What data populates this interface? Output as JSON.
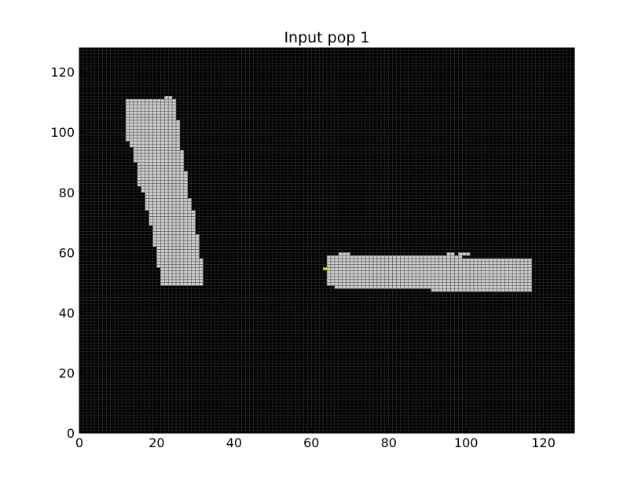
{
  "chart_data": {
    "type": "heatmap",
    "title": "Input pop 1",
    "xlabel": "",
    "ylabel": "",
    "xlim": [
      0,
      128
    ],
    "ylim": [
      0,
      128
    ],
    "xticks": [
      0,
      20,
      40,
      60,
      80,
      100,
      120
    ],
    "yticks": [
      0,
      20,
      40,
      60,
      80,
      100,
      120
    ],
    "grid": true,
    "colors": {
      "background": "#000000",
      "gridline": "#3a3a3a",
      "active_cell": "#cfcfcf",
      "cell_edge": "#5a5a5a",
      "marker": "#e6f000"
    },
    "active_rows_left_shape": [
      {
        "y": 49,
        "x0": 21,
        "x1": 32
      },
      {
        "y": 50,
        "x0": 21,
        "x1": 32
      },
      {
        "y": 51,
        "x0": 21,
        "x1": 32
      },
      {
        "y": 52,
        "x0": 21,
        "x1": 32
      },
      {
        "y": 53,
        "x0": 21,
        "x1": 32
      },
      {
        "y": 54,
        "x0": 21,
        "x1": 32
      },
      {
        "y": 55,
        "x0": 20,
        "x1": 32
      },
      {
        "y": 56,
        "x0": 20,
        "x1": 32
      },
      {
        "y": 57,
        "x0": 20,
        "x1": 32
      },
      {
        "y": 58,
        "x0": 20,
        "x1": 31
      },
      {
        "y": 59,
        "x0": 20,
        "x1": 31
      },
      {
        "y": 60,
        "x0": 20,
        "x1": 31
      },
      {
        "y": 61,
        "x0": 20,
        "x1": 31
      },
      {
        "y": 62,
        "x0": 19,
        "x1": 31
      },
      {
        "y": 63,
        "x0": 19,
        "x1": 31
      },
      {
        "y": 64,
        "x0": 19,
        "x1": 31
      },
      {
        "y": 65,
        "x0": 19,
        "x1": 31
      },
      {
        "y": 66,
        "x0": 19,
        "x1": 30
      },
      {
        "y": 67,
        "x0": 19,
        "x1": 30
      },
      {
        "y": 68,
        "x0": 19,
        "x1": 30
      },
      {
        "y": 69,
        "x0": 18,
        "x1": 30
      },
      {
        "y": 70,
        "x0": 18,
        "x1": 30
      },
      {
        "y": 71,
        "x0": 18,
        "x1": 30
      },
      {
        "y": 72,
        "x0": 18,
        "x1": 30
      },
      {
        "y": 73,
        "x0": 18,
        "x1": 30
      },
      {
        "y": 74,
        "x0": 17,
        "x1": 29
      },
      {
        "y": 75,
        "x0": 17,
        "x1": 29
      },
      {
        "y": 76,
        "x0": 17,
        "x1": 29
      },
      {
        "y": 77,
        "x0": 17,
        "x1": 29
      },
      {
        "y": 78,
        "x0": 17,
        "x1": 28
      },
      {
        "y": 79,
        "x0": 17,
        "x1": 28
      },
      {
        "y": 80,
        "x0": 16,
        "x1": 28
      },
      {
        "y": 81,
        "x0": 16,
        "x1": 28
      },
      {
        "y": 82,
        "x0": 15,
        "x1": 28
      },
      {
        "y": 83,
        "x0": 15,
        "x1": 28
      },
      {
        "y": 84,
        "x0": 15,
        "x1": 28
      },
      {
        "y": 85,
        "x0": 15,
        "x1": 28
      },
      {
        "y": 86,
        "x0": 15,
        "x1": 28
      },
      {
        "y": 87,
        "x0": 15,
        "x1": 27
      },
      {
        "y": 88,
        "x0": 15,
        "x1": 27
      },
      {
        "y": 89,
        "x0": 15,
        "x1": 27
      },
      {
        "y": 90,
        "x0": 14,
        "x1": 27
      },
      {
        "y": 91,
        "x0": 14,
        "x1": 27
      },
      {
        "y": 92,
        "x0": 14,
        "x1": 27
      },
      {
        "y": 93,
        "x0": 14,
        "x1": 27
      },
      {
        "y": 94,
        "x0": 14,
        "x1": 26
      },
      {
        "y": 95,
        "x0": 13,
        "x1": 26
      },
      {
        "y": 96,
        "x0": 13,
        "x1": 26
      },
      {
        "y": 97,
        "x0": 12,
        "x1": 26
      },
      {
        "y": 98,
        "x0": 12,
        "x1": 26
      },
      {
        "y": 99,
        "x0": 12,
        "x1": 26
      },
      {
        "y": 100,
        "x0": 12,
        "x1": 26
      },
      {
        "y": 101,
        "x0": 12,
        "x1": 26
      },
      {
        "y": 102,
        "x0": 12,
        "x1": 26
      },
      {
        "y": 103,
        "x0": 12,
        "x1": 26
      },
      {
        "y": 104,
        "x0": 12,
        "x1": 25
      },
      {
        "y": 105,
        "x0": 12,
        "x1": 25
      },
      {
        "y": 106,
        "x0": 12,
        "x1": 25
      },
      {
        "y": 107,
        "x0": 12,
        "x1": 25
      },
      {
        "y": 108,
        "x0": 12,
        "x1": 25
      },
      {
        "y": 109,
        "x0": 12,
        "x1": 25
      },
      {
        "y": 110,
        "x0": 12,
        "x1": 25
      },
      {
        "y": 111,
        "x0": 22,
        "x1": 24
      }
    ],
    "active_rows_right_shape": [
      {
        "y": 47,
        "x0": 91,
        "x1": 117
      },
      {
        "y": 48,
        "x0": 66,
        "x1": 117
      },
      {
        "y": 49,
        "x0": 64,
        "x1": 117
      },
      {
        "y": 50,
        "x0": 64,
        "x1": 117
      },
      {
        "y": 51,
        "x0": 64,
        "x1": 117
      },
      {
        "y": 52,
        "x0": 64,
        "x1": 117
      },
      {
        "y": 53,
        "x0": 64,
        "x1": 117
      },
      {
        "y": 54,
        "x0": 64,
        "x1": 117
      },
      {
        "y": 55,
        "x0": 64,
        "x1": 117
      },
      {
        "y": 56,
        "x0": 64,
        "x1": 117
      },
      {
        "y": 57,
        "x0": 64,
        "x1": 117
      },
      {
        "y": 58,
        "x0": 64,
        "x1": 99
      },
      {
        "y": 59,
        "x0": 67,
        "x1": 70
      },
      {
        "y": 59,
        "x0": 95,
        "x1": 97
      },
      {
        "y": 59,
        "x0": 98,
        "x1": 101
      }
    ],
    "highlighted_cells": [
      {
        "x": 63,
        "y": 54
      }
    ]
  }
}
